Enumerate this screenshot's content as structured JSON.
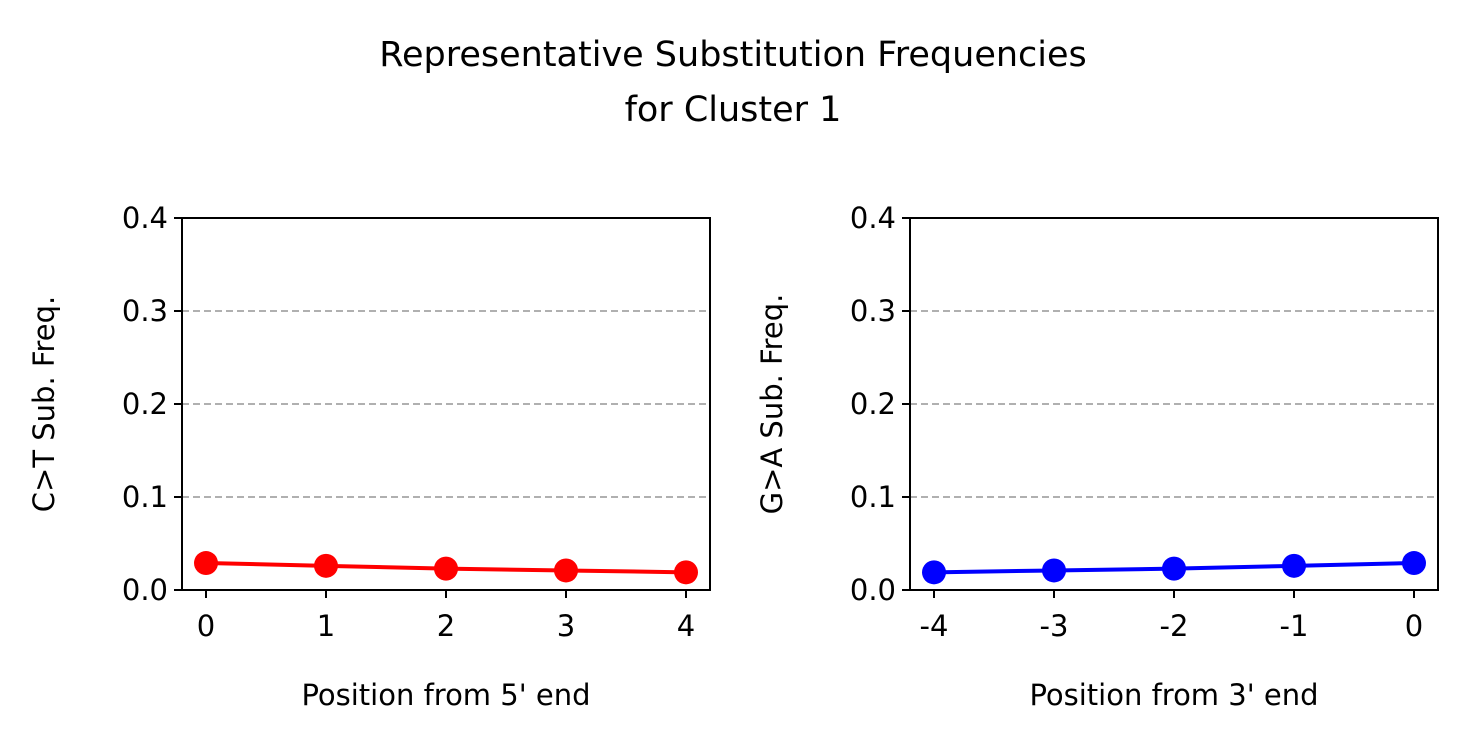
{
  "figure": {
    "title_line1": "Representative Substitution Frequencies",
    "title_line2": "for Cluster 1"
  },
  "chart_data": [
    {
      "type": "line",
      "x": [
        0,
        1,
        2,
        3,
        4
      ],
      "x_tick_labels": [
        "0",
        "1",
        "2",
        "3",
        "4"
      ],
      "series": [
        {
          "values": [
            0.029,
            0.026,
            0.023,
            0.021,
            0.019
          ],
          "color": "#ff0000"
        }
      ],
      "xlabel": "Position from 5' end",
      "ylabel": "C>T Sub. Freq.",
      "ylim": [
        0,
        0.4
      ],
      "xlim": [
        -0.2,
        4.2
      ],
      "y_ticks": [
        0.0,
        0.1,
        0.2,
        0.3,
        0.4
      ],
      "y_tick_labels": [
        "0.0",
        "0.1",
        "0.2",
        "0.3",
        "0.4"
      ],
      "grid": "y-dashed"
    },
    {
      "type": "line",
      "x": [
        -4,
        -3,
        -2,
        -1,
        0
      ],
      "x_tick_labels": [
        "-4",
        "-3",
        "-2",
        "-1",
        "0"
      ],
      "series": [
        {
          "values": [
            0.019,
            0.021,
            0.023,
            0.026,
            0.029
          ],
          "color": "#0000ff"
        }
      ],
      "xlabel": "Position from 3' end",
      "ylabel": "G>A Sub. Freq.",
      "ylim": [
        0,
        0.4
      ],
      "xlim": [
        -4.2,
        0.2
      ],
      "y_ticks": [
        0.0,
        0.1,
        0.2,
        0.3,
        0.4
      ],
      "y_tick_labels": [
        "0.0",
        "0.1",
        "0.2",
        "0.3",
        "0.4"
      ],
      "grid": "y-dashed"
    }
  ]
}
